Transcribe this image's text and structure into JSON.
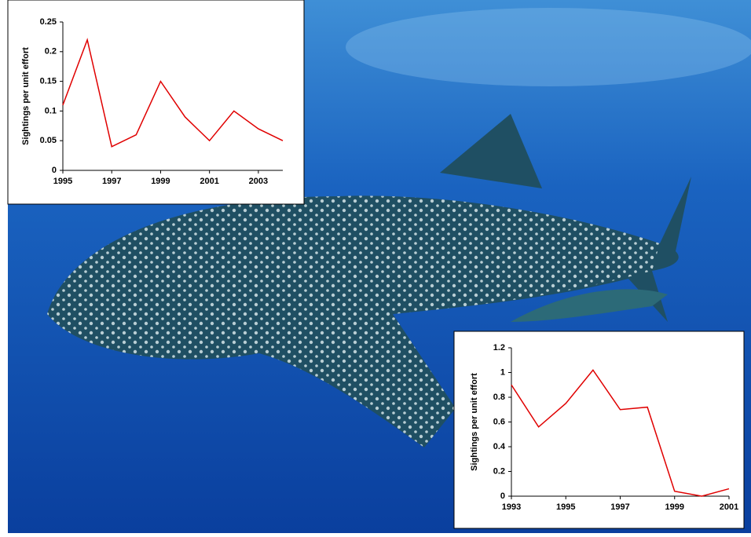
{
  "chart_data": [
    {
      "type": "line",
      "ylabel": "Sightings per unit effort",
      "x": [
        1995,
        1996,
        1997,
        1998,
        1999,
        2000,
        2001,
        2002,
        2003,
        2004
      ],
      "series": [
        {
          "color": "#e00000",
          "values": [
            0.11,
            0.22,
            0.04,
            0.06,
            0.15,
            0.09,
            0.05,
            0.1,
            0.07,
            0.05
          ]
        }
      ],
      "xlim": [
        1995,
        2004
      ],
      "xticks": [
        1995,
        1997,
        1999,
        2001,
        2003
      ],
      "ylim": [
        0,
        0.25
      ],
      "yticks": [
        0,
        0.05,
        0.1,
        0.15,
        0.2,
        0.25
      ]
    },
    {
      "type": "line",
      "ylabel": "Sightings per unit effort",
      "x": [
        1993,
        1994,
        1995,
        1996,
        1997,
        1998,
        1999,
        2000,
        2001
      ],
      "series": [
        {
          "color": "#e00000",
          "values": [
            0.9,
            0.56,
            0.75,
            1.02,
            0.7,
            0.72,
            0.04,
            0.0,
            0.06
          ]
        }
      ],
      "xlim": [
        1993,
        2001
      ],
      "xticks": [
        1993,
        1995,
        1997,
        1999,
        2001
      ],
      "ylim": [
        0,
        1.2
      ],
      "yticks": [
        0,
        0.2,
        0.4,
        0.6,
        0.8,
        1,
        1.2
      ]
    }
  ]
}
